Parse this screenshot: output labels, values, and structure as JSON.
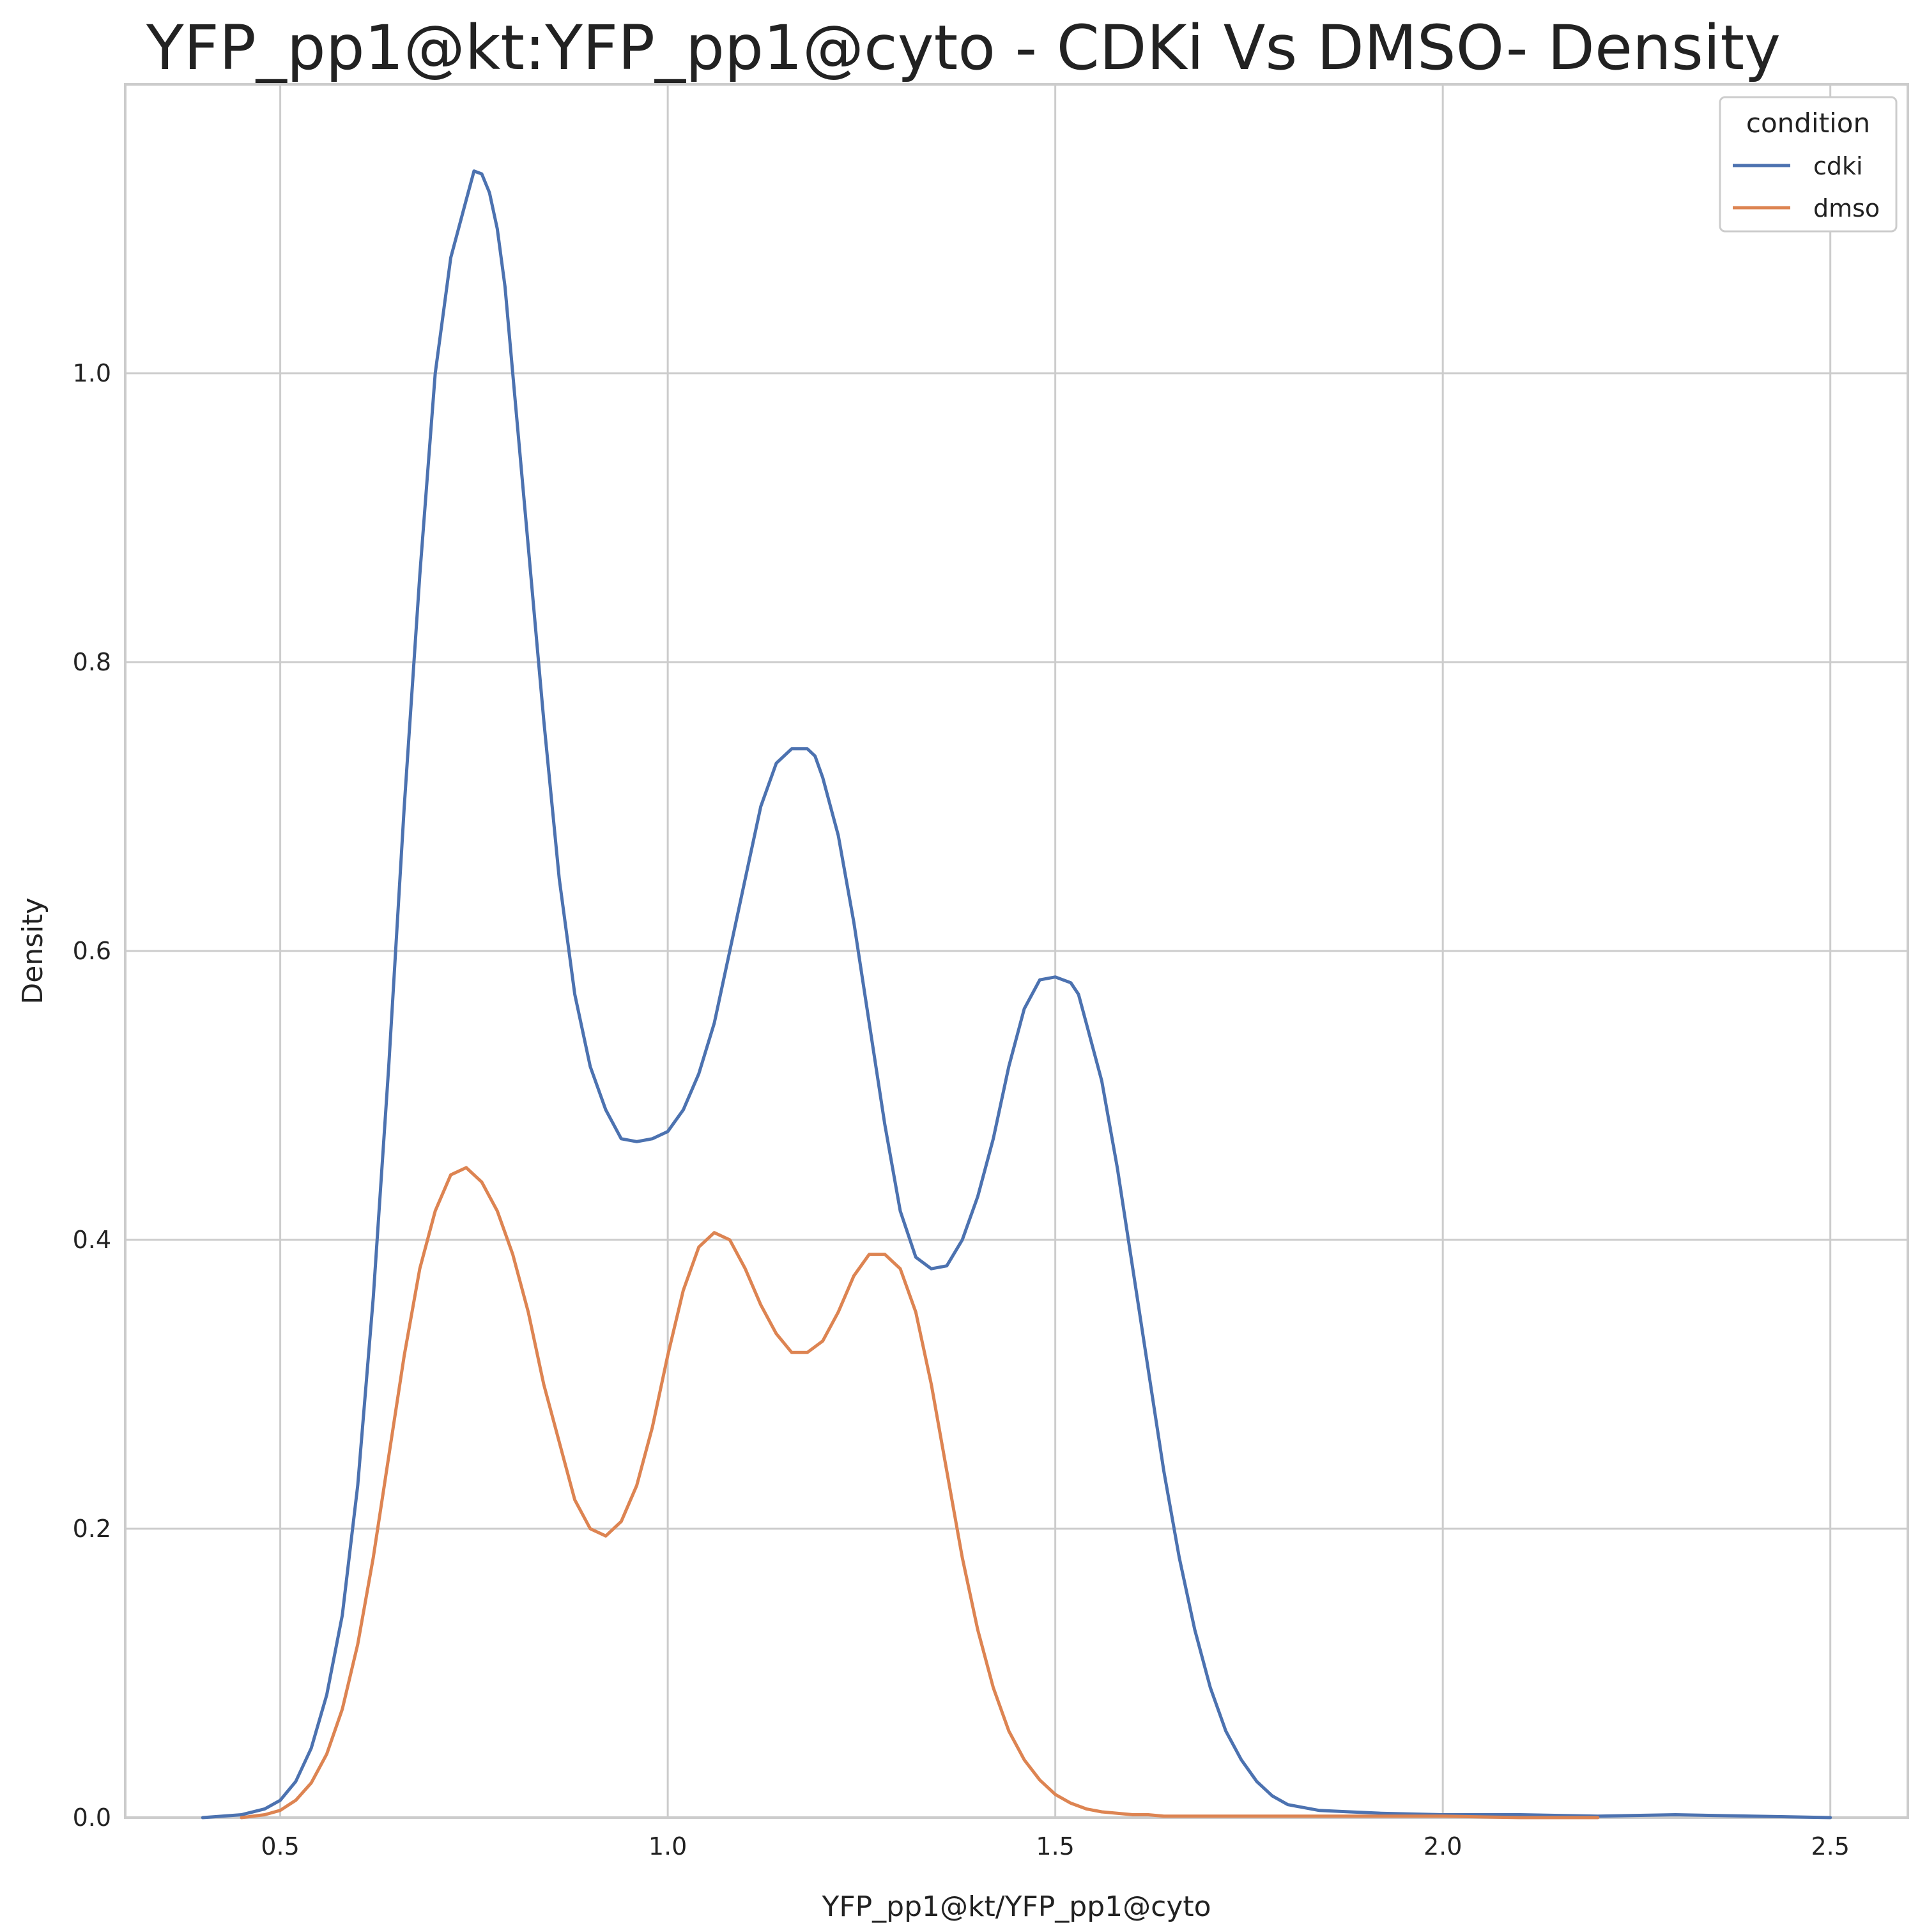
{
  "chart_data": {
    "type": "line",
    "title": "YFP_pp1@kt:YFP_pp1@cyto - CDKi Vs DMSO- Density",
    "xlabel": "YFP_pp1@kt/YFP_pp1@cyto",
    "ylabel": "Density",
    "xlim": [
      0.3,
      2.6
    ],
    "ylim": [
      0.0,
      1.2
    ],
    "xticks": [
      "0.5",
      "1.0",
      "1.5",
      "2.0",
      "2.5"
    ],
    "yticks": [
      "0.0",
      "0.2",
      "0.4",
      "0.6",
      "0.8",
      "1.0"
    ],
    "grid": true,
    "legend": {
      "title": "condition",
      "placement": "top-right"
    },
    "series": [
      {
        "name": "cdki",
        "color": "#4c72b0",
        "x": [
          0.4,
          0.45,
          0.48,
          0.5,
          0.52,
          0.54,
          0.56,
          0.58,
          0.6,
          0.62,
          0.64,
          0.66,
          0.68,
          0.7,
          0.72,
          0.74,
          0.75,
          0.76,
          0.77,
          0.78,
          0.79,
          0.8,
          0.82,
          0.84,
          0.86,
          0.88,
          0.9,
          0.92,
          0.94,
          0.96,
          0.98,
          1.0,
          1.02,
          1.04,
          1.06,
          1.08,
          1.1,
          1.12,
          1.14,
          1.16,
          1.18,
          1.19,
          1.2,
          1.22,
          1.24,
          1.26,
          1.28,
          1.3,
          1.32,
          1.34,
          1.36,
          1.38,
          1.4,
          1.42,
          1.44,
          1.46,
          1.48,
          1.5,
          1.52,
          1.53,
          1.54,
          1.56,
          1.58,
          1.6,
          1.62,
          1.64,
          1.66,
          1.68,
          1.7,
          1.72,
          1.74,
          1.76,
          1.78,
          1.8,
          1.84,
          1.88,
          1.92,
          2.0,
          2.1,
          2.2,
          2.3,
          2.4,
          2.5
        ],
        "y": [
          0.0,
          0.002,
          0.006,
          0.012,
          0.025,
          0.048,
          0.085,
          0.14,
          0.23,
          0.36,
          0.52,
          0.7,
          0.86,
          1.0,
          1.08,
          1.12,
          1.14,
          1.138,
          1.125,
          1.1,
          1.06,
          1.0,
          0.88,
          0.76,
          0.65,
          0.57,
          0.52,
          0.49,
          0.47,
          0.468,
          0.47,
          0.475,
          0.49,
          0.515,
          0.55,
          0.6,
          0.65,
          0.7,
          0.73,
          0.74,
          0.74,
          0.735,
          0.72,
          0.68,
          0.62,
          0.55,
          0.48,
          0.42,
          0.388,
          0.38,
          0.382,
          0.4,
          0.43,
          0.47,
          0.52,
          0.56,
          0.58,
          0.582,
          0.578,
          0.57,
          0.55,
          0.51,
          0.45,
          0.38,
          0.31,
          0.24,
          0.18,
          0.13,
          0.09,
          0.06,
          0.04,
          0.025,
          0.015,
          0.009,
          0.005,
          0.004,
          0.003,
          0.002,
          0.002,
          0.001,
          0.002,
          0.001,
          0.0
        ]
      },
      {
        "name": "dmso",
        "color": "#dd8452",
        "x": [
          0.45,
          0.48,
          0.5,
          0.52,
          0.54,
          0.56,
          0.58,
          0.6,
          0.62,
          0.64,
          0.66,
          0.68,
          0.7,
          0.72,
          0.74,
          0.76,
          0.78,
          0.8,
          0.82,
          0.84,
          0.86,
          0.88,
          0.9,
          0.92,
          0.94,
          0.96,
          0.98,
          1.0,
          1.02,
          1.04,
          1.06,
          1.08,
          1.1,
          1.12,
          1.14,
          1.16,
          1.18,
          1.2,
          1.22,
          1.24,
          1.26,
          1.28,
          1.3,
          1.32,
          1.34,
          1.36,
          1.38,
          1.4,
          1.42,
          1.44,
          1.46,
          1.48,
          1.5,
          1.52,
          1.54,
          1.56,
          1.58,
          1.6,
          1.62,
          1.64,
          1.66,
          1.68,
          1.7,
          1.72,
          1.74,
          1.76,
          1.78,
          1.8,
          1.85,
          1.9,
          2.0,
          2.1,
          2.2
        ],
        "y": [
          0.0,
          0.002,
          0.005,
          0.012,
          0.024,
          0.044,
          0.075,
          0.12,
          0.18,
          0.25,
          0.32,
          0.38,
          0.42,
          0.445,
          0.45,
          0.44,
          0.42,
          0.39,
          0.35,
          0.3,
          0.26,
          0.22,
          0.2,
          0.195,
          0.205,
          0.23,
          0.27,
          0.32,
          0.365,
          0.395,
          0.405,
          0.4,
          0.38,
          0.355,
          0.335,
          0.322,
          0.322,
          0.33,
          0.35,
          0.375,
          0.39,
          0.39,
          0.38,
          0.35,
          0.3,
          0.24,
          0.18,
          0.13,
          0.09,
          0.06,
          0.04,
          0.026,
          0.016,
          0.01,
          0.006,
          0.004,
          0.003,
          0.002,
          0.002,
          0.001,
          0.001,
          0.001,
          0.001,
          0.001,
          0.001,
          0.001,
          0.001,
          0.001,
          0.001,
          0.001,
          0.001,
          0.0,
          0.0
        ]
      }
    ]
  }
}
